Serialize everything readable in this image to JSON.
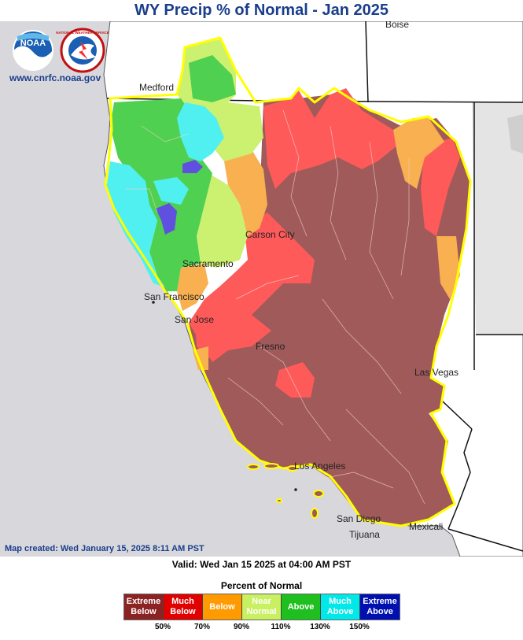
{
  "title": "WY Precip % of Normal - Jan 2025",
  "site_url": "www.cnrfc.noaa.gov",
  "map_created": "Map created: Wed January 15, 2025 8:11 AM PST",
  "valid": "Valid: Wed Jan 15 2025 at 04:00 AM PST",
  "logos": {
    "noaa": "NOAA",
    "nws": "NATIONAL WEATHER SERVICE"
  },
  "cities": {
    "boise": "Boise",
    "medford": "Medford",
    "carson_city": "Carson City",
    "sacramento": "Sacramento",
    "san_francisco": "San Francisco",
    "san_jose": "San Jose",
    "fresno": "Fresno",
    "las_vegas": "Las Vegas",
    "los_angeles": "Los Angeles",
    "san_diego": "San Diego",
    "tijuana": "Tijuana",
    "mexicali": "Mexicali"
  },
  "legend": {
    "title": "Percent of Normal",
    "items": [
      {
        "label": "Extreme Below",
        "color": "#8b2323",
        "text_color": "#ffffff"
      },
      {
        "label": "Much Below",
        "color": "#e00000",
        "text_color": "#ffffff"
      },
      {
        "label": "Below",
        "color": "#ff9a00",
        "text_color": "#ffffff"
      },
      {
        "label": "Near Normal",
        "color": "#c8f060",
        "text_color": "#ffffff"
      },
      {
        "label": "Above",
        "color": "#1fbf1f",
        "text_color": "#ffffff"
      },
      {
        "label": "Much Above",
        "color": "#00e8e8",
        "text_color": "#ffffff"
      },
      {
        "label": "Extreme Above",
        "color": "#0010b0",
        "text_color": "#ffffff"
      }
    ],
    "ticks": [
      "50%",
      "70%",
      "90%",
      "110%",
      "130%",
      "150%"
    ]
  },
  "colors": {
    "extreme_below_map": "#a05a5a",
    "much_below_map": "#ff5a5a",
    "below_map": "#f8b050",
    "near_normal_map": "#ccf070",
    "above_map": "#50d050",
    "much_above_map": "#50f0f0",
    "extreme_above_map": "#6050e0",
    "boundary": "#ffff00",
    "land": "#ffffff",
    "ocean": "#d8d8dc"
  }
}
